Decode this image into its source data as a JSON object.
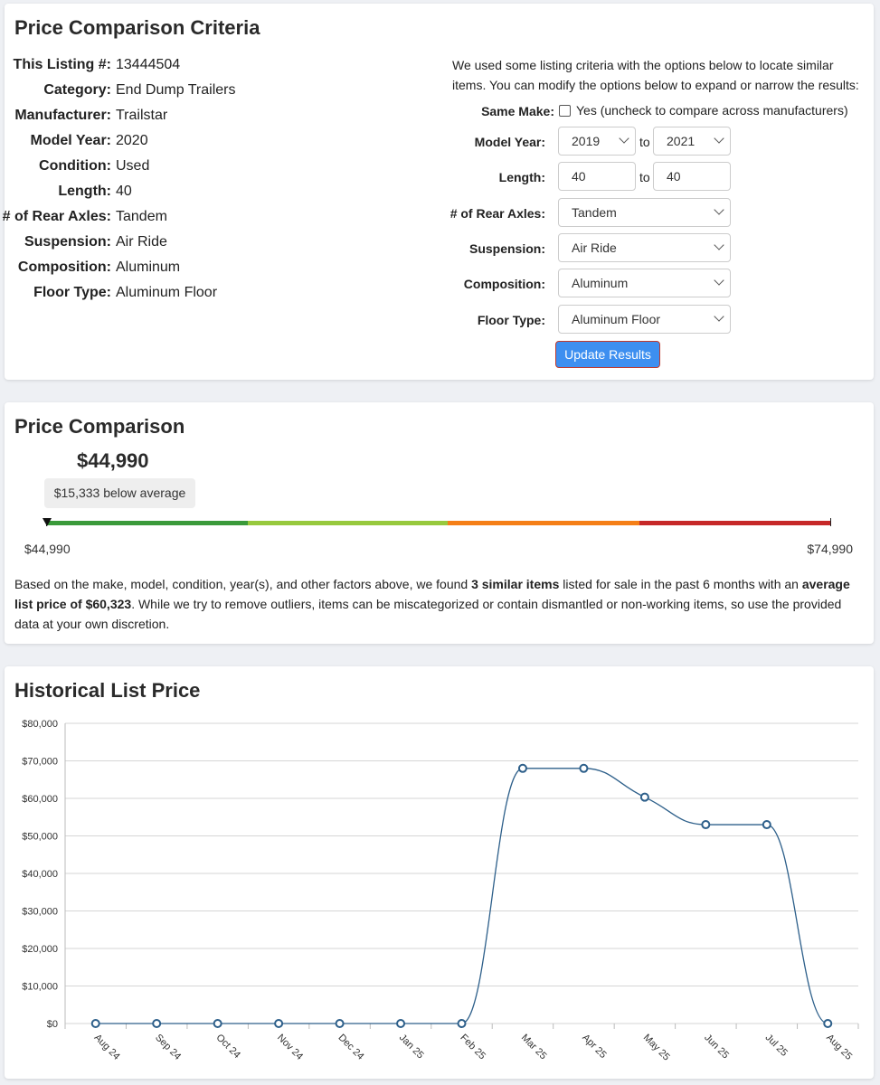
{
  "criteria": {
    "title": "Price Comparison Criteria",
    "specs": [
      {
        "label": "This Listing #:",
        "value": "13444504"
      },
      {
        "label": "Category:",
        "value": "End Dump Trailers"
      },
      {
        "label": "Manufacturer:",
        "value": "Trailstar"
      },
      {
        "label": "Model Year:",
        "value": "2020"
      },
      {
        "label": "Condition:",
        "value": "Used"
      },
      {
        "label": "Length:",
        "value": "40"
      },
      {
        "label": "# of Rear Axles:",
        "value": "Tandem"
      },
      {
        "label": "Suspension:",
        "value": "Air Ride"
      },
      {
        "label": "Composition:",
        "value": "Aluminum"
      },
      {
        "label": "Floor Type:",
        "value": "Aluminum Floor"
      }
    ],
    "intro": "We used some listing criteria with the options below to locate similar items. You can modify the options below to expand or narrow the results:",
    "same_make_label": "Same Make:",
    "same_make_checked": false,
    "same_make_text": "Yes (uncheck to compare across manufacturers)",
    "model_year_label": "Model Year:",
    "model_year_from": "2019",
    "model_year_to": "2021",
    "to_text": "to",
    "length_label": "Length:",
    "length_from": "40",
    "length_to": "40",
    "axles_label": "# of Rear Axles:",
    "axles_value": "Tandem",
    "suspension_label": "Suspension:",
    "suspension_value": "Air Ride",
    "composition_label": "Composition:",
    "composition_value": "Aluminum",
    "floor_label": "Floor Type:",
    "floor_value": "Aluminum Floor",
    "update_button": "Update Results"
  },
  "comparison": {
    "title": "Price Comparison",
    "listing_price": "$44,990",
    "below_average_text": "$15,333 below average",
    "range_min": "$44,990",
    "range_max": "$74,990",
    "marker_fraction": 0,
    "bar_colors": [
      "#3a9a3a",
      "#97c93d",
      "#f57f17",
      "#c62828"
    ],
    "para_1": "Based on the make, model, condition, year(s), and other factors above, we found ",
    "para_bold_1": "3 similar items",
    "para_2": " listed for sale in the past 6 months with an ",
    "para_bold_2": "average list price of $60,323",
    "para_3": ". While we try to remove outliers, items can be miscategorized or contain dismantled or non-working items, so use the provided data at your own discretion."
  },
  "history": {
    "title": "Historical List Price"
  },
  "chart_data": {
    "type": "line",
    "title": "Historical List Price",
    "xlabel": "",
    "ylabel": "",
    "categories": [
      "Aug 24",
      "Sep 24",
      "Oct 24",
      "Nov 24",
      "Dec 24",
      "Jan 25",
      "Feb 25",
      "Mar 25",
      "Apr 25",
      "May 25",
      "Jun 25",
      "Jul 25",
      "Aug 25"
    ],
    "values": [
      0,
      0,
      0,
      0,
      0,
      0,
      0,
      68000,
      68000,
      60323,
      53000,
      53000,
      0
    ],
    "ylim": [
      0,
      80000
    ],
    "yticks": [
      "$0",
      "$10,000",
      "$20,000",
      "$30,000",
      "$40,000",
      "$50,000",
      "$60,000",
      "$70,000",
      "$80,000"
    ],
    "grid": true,
    "line_color": "#2d5f8a"
  }
}
